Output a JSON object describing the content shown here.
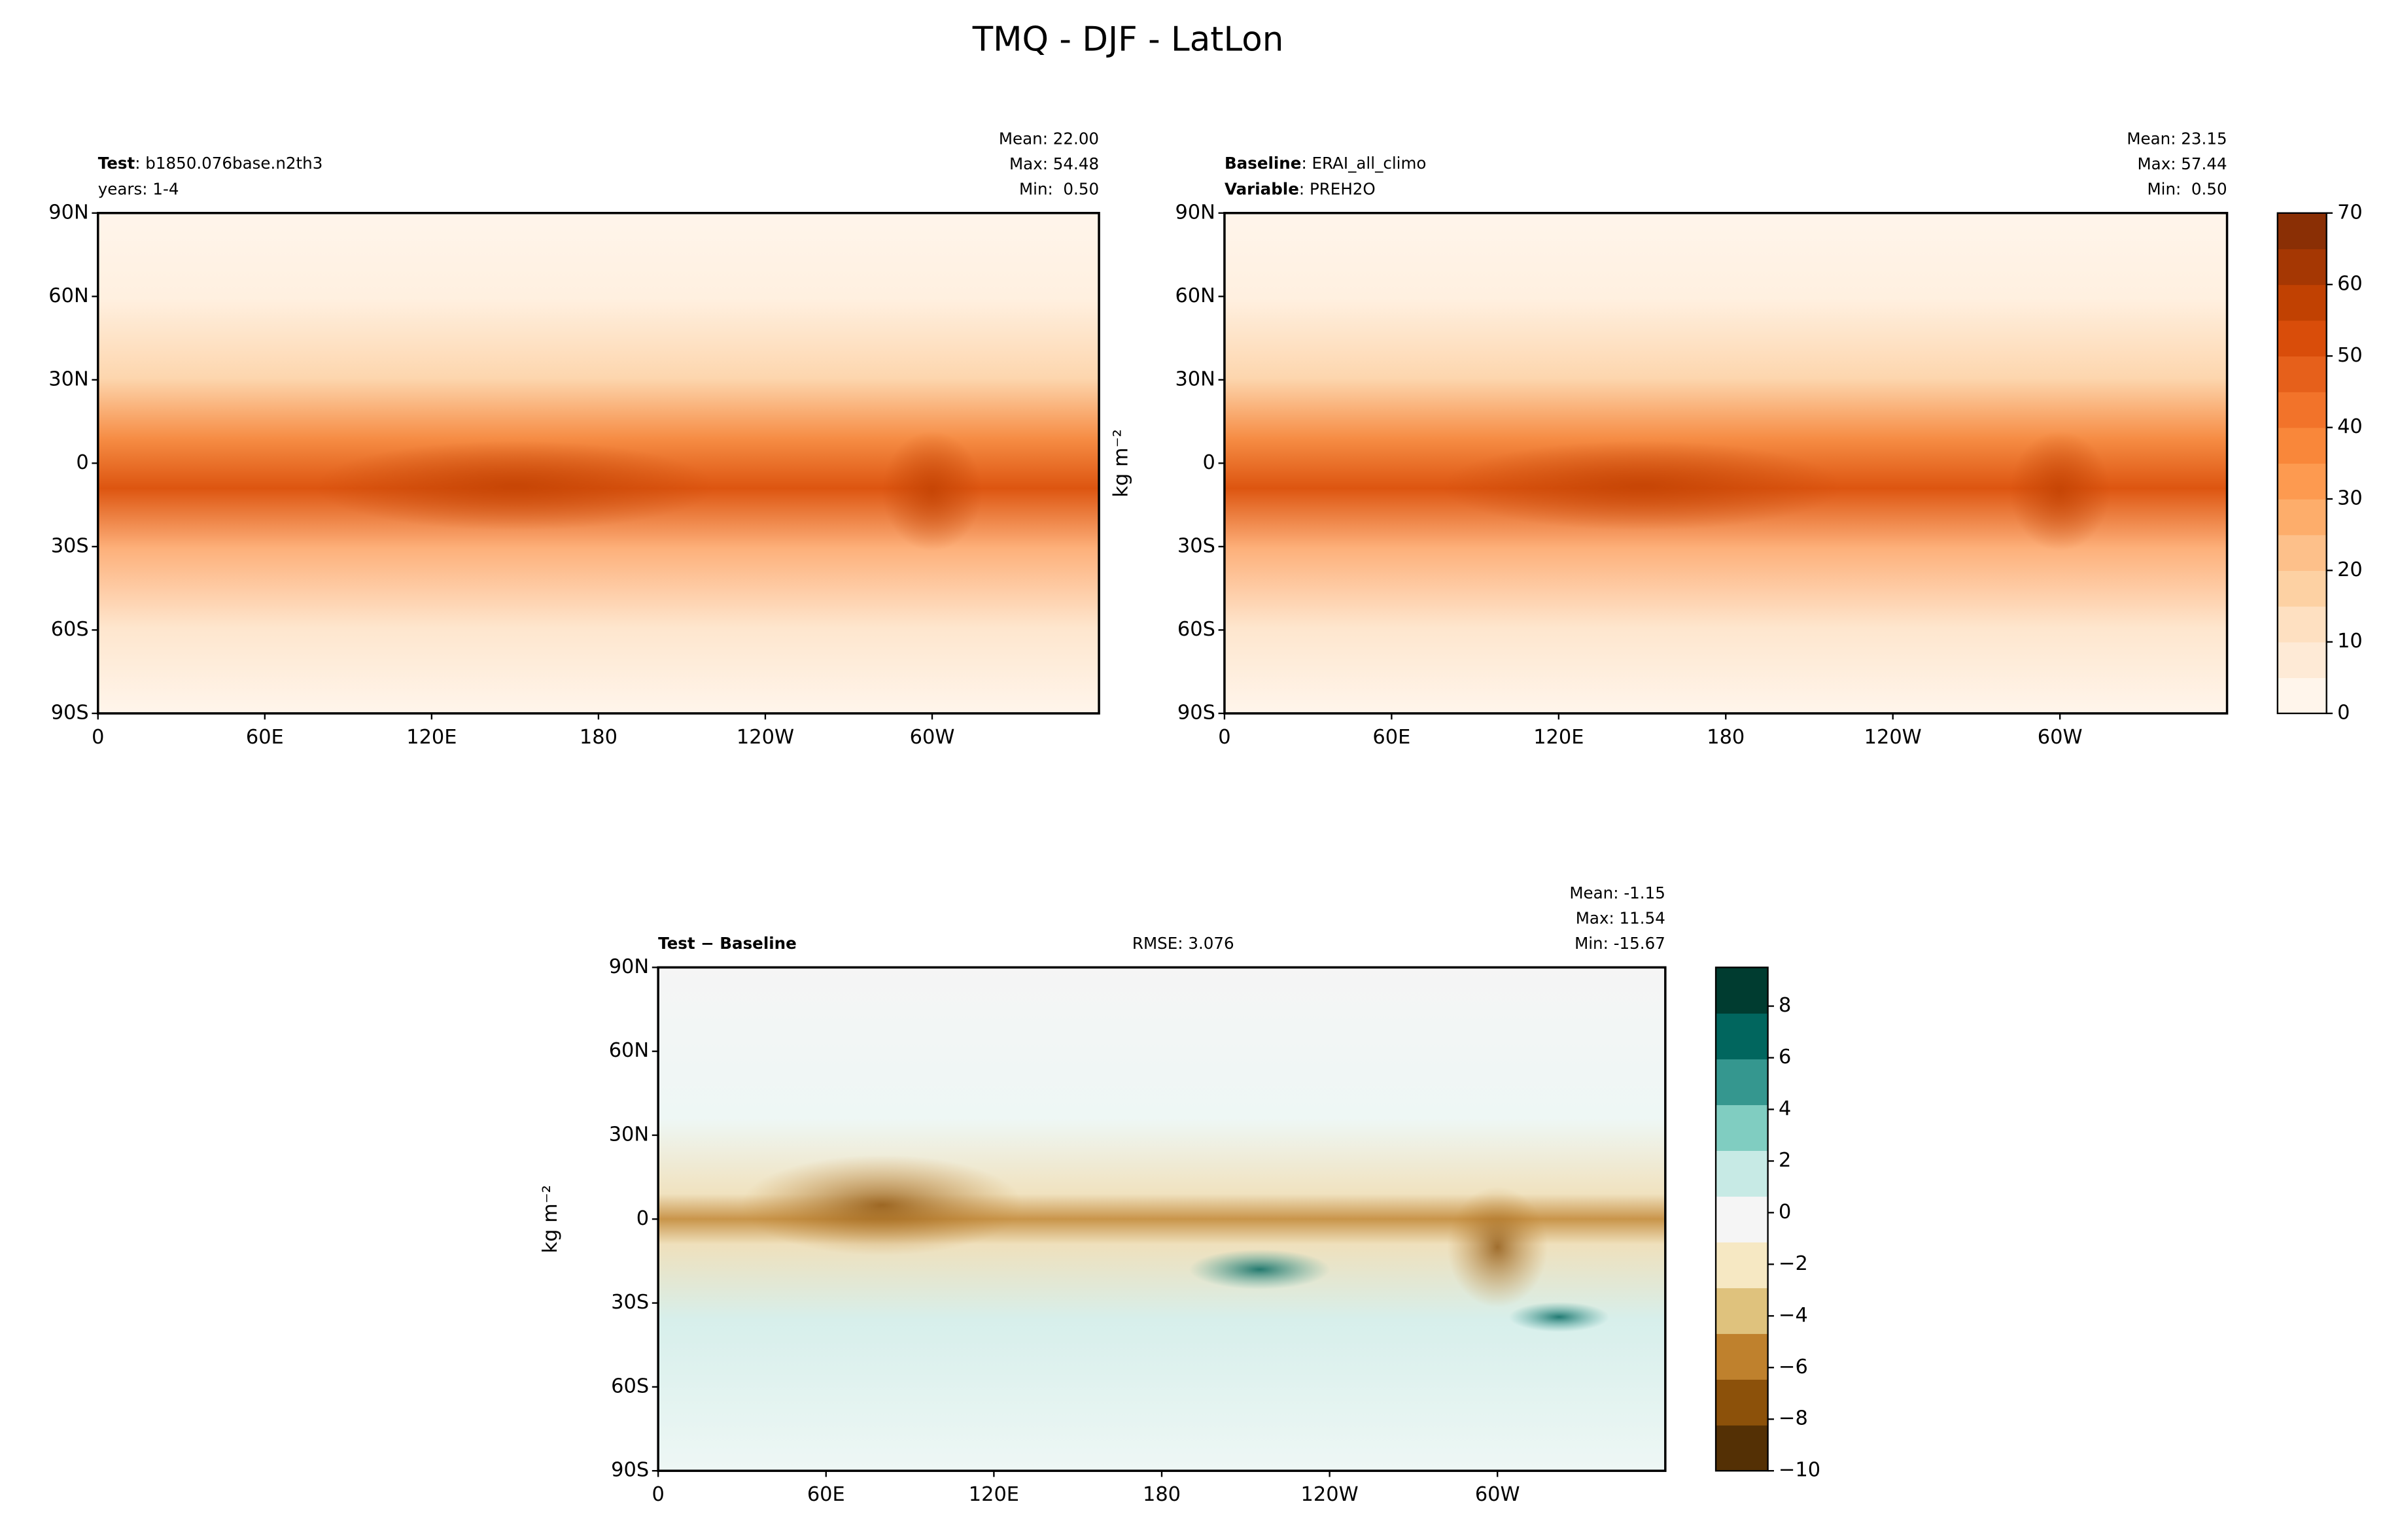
{
  "title": "TMQ - DJF - LatLon",
  "chart_data": [
    {
      "type": "contour_map",
      "header_left": [
        [
          {
            "text": "Test",
            "bold": true
          },
          {
            "text": ": b1850.076base.n2th3"
          }
        ],
        [
          {
            "text": "years: 1-4"
          }
        ]
      ],
      "stats": [
        "Mean: 22.00",
        "Max: 54.48",
        "Min:  0.50"
      ],
      "xlim": [
        0,
        360
      ],
      "ylim": [
        -90,
        90
      ],
      "xticks": [
        0,
        {
          "value": 60,
          "label": "60E"
        },
        {
          "value": 120,
          "label": "120E"
        },
        180,
        {
          "value": 240,
          "label": "120W"
        },
        {
          "value": 300,
          "label": "60W"
        }
      ],
      "yticks": [
        {
          "value": 90,
          "label": "90N"
        },
        {
          "value": 60,
          "label": "60N"
        },
        {
          "value": 30,
          "label": "30N"
        },
        0,
        {
          "value": -30,
          "label": "30S"
        },
        {
          "value": -60,
          "label": "60S"
        },
        {
          "value": -90,
          "label": "90S"
        }
      ]
    },
    {
      "type": "contour_map",
      "header_left": [
        [
          {
            "text": "Baseline",
            "bold": true
          },
          {
            "text": ": ERAI_all_climo"
          }
        ],
        [
          {
            "text": "Variable",
            "bold": true
          },
          {
            "text": ": PREH2O"
          }
        ]
      ],
      "stats": [
        "Mean: 23.15",
        "Max: 57.44",
        "Min:  0.50"
      ],
      "ylabel": "kg m⁻²",
      "xlim": [
        0,
        360
      ],
      "ylim": [
        -90,
        90
      ],
      "xticks": [
        0,
        {
          "value": 60,
          "label": "60E"
        },
        {
          "value": 120,
          "label": "120E"
        },
        180,
        {
          "value": 240,
          "label": "120W"
        },
        {
          "value": 300,
          "label": "60W"
        }
      ],
      "yticks": [
        {
          "value": 90,
          "label": "90N"
        },
        {
          "value": 60,
          "label": "60N"
        },
        {
          "value": 30,
          "label": "30N"
        },
        0,
        {
          "value": -30,
          "label": "30S"
        },
        {
          "value": -60,
          "label": "60S"
        },
        {
          "value": -90,
          "label": "90S"
        }
      ],
      "colorbar": {
        "lim": [
          0,
          70
        ],
        "ticks": [
          0,
          10,
          20,
          30,
          40,
          50,
          60,
          70
        ],
        "colors": [
          "#fff5eb",
          "#feead6",
          "#fee0c1",
          "#fdd1a3",
          "#fdc08a",
          "#fdad6b",
          "#fd9a50",
          "#f9873a",
          "#f2732a",
          "#e6601b",
          "#d94d0a",
          "#c14102",
          "#a53703",
          "#8a2f05"
        ]
      }
    },
    {
      "type": "contour_map",
      "header_left": [
        [
          {
            "text": "Test − Baseline",
            "bold": true
          }
        ]
      ],
      "center_text": "RMSE: 3.076",
      "stats": [
        "Mean: -1.15",
        "Max: 11.54",
        "Min: -15.67"
      ],
      "ylabel": "kg m⁻²",
      "xlim": [
        0,
        360
      ],
      "ylim": [
        -90,
        90
      ],
      "xticks": [
        0,
        {
          "value": 60,
          "label": "60E"
        },
        {
          "value": 120,
          "label": "120E"
        },
        180,
        {
          "value": 240,
          "label": "120W"
        },
        {
          "value": 300,
          "label": "60W"
        }
      ],
      "yticks": [
        {
          "value": 90,
          "label": "90N"
        },
        {
          "value": 60,
          "label": "60N"
        },
        {
          "value": 30,
          "label": "30N"
        },
        0,
        {
          "value": -30,
          "label": "30S"
        },
        {
          "value": -60,
          "label": "60S"
        },
        {
          "value": -90,
          "label": "90S"
        }
      ],
      "colorbar": {
        "lim": [
          -10,
          9.5
        ],
        "ticks": [
          {
            "value": -10,
            "label": "−10"
          },
          {
            "value": -8,
            "label": "−8"
          },
          {
            "value": -6,
            "label": "−6"
          },
          {
            "value": -4,
            "label": "−4"
          },
          {
            "value": -2,
            "label": "−2"
          },
          0,
          2,
          4,
          6,
          8
        ],
        "colors": [
          "#543005",
          "#8c510a",
          "#bf812d",
          "#dfc27d",
          "#f6e8c3",
          "#f5f5f5",
          "#c7eae5",
          "#80cdc1",
          "#35978f",
          "#01665e",
          "#003c30"
        ]
      }
    }
  ]
}
